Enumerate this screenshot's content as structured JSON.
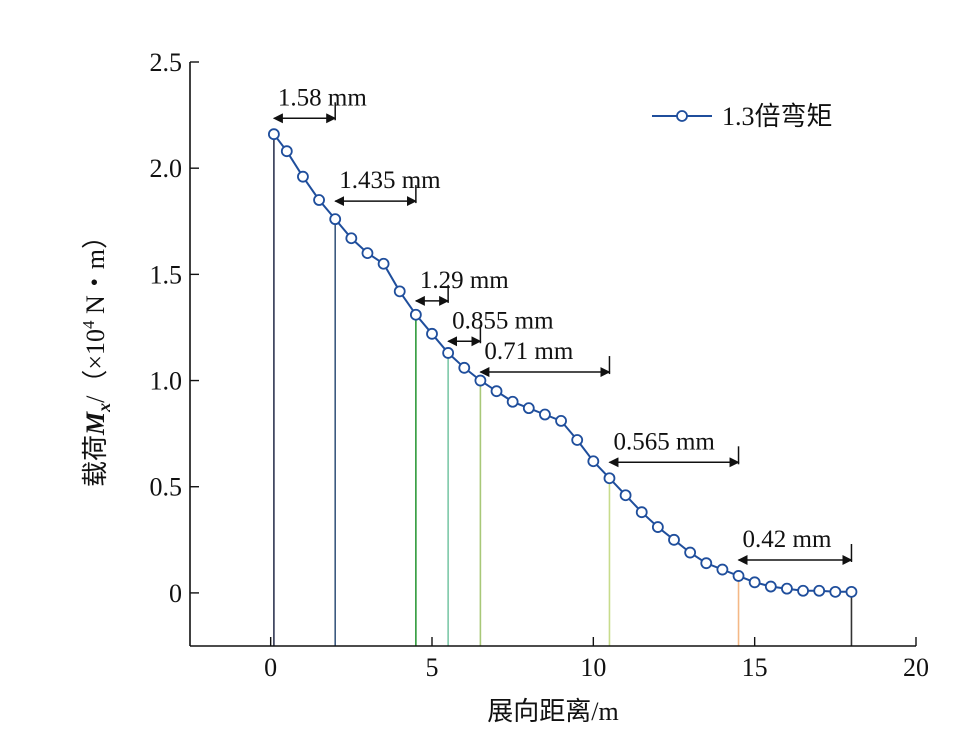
{
  "chart_data": {
    "type": "line",
    "xlabel": "展向距离/m",
    "ylabel_prefix": "载荷",
    "ylabel_symbol": "M",
    "ylabel_subscript": "x",
    "ylabel_suffix": "/（×10",
    "ylabel_exponent": "4",
    "ylabel_unit": " N・m）",
    "xlim": [
      -2.5,
      20
    ],
    "ylim": [
      -0.25,
      2.5
    ],
    "xticks": [
      0,
      5,
      10,
      15,
      20
    ],
    "xtick_labels": [
      "0",
      "5",
      "10",
      "15",
      "20"
    ],
    "yticks": [
      0,
      0.5,
      1.0,
      1.5,
      2.0,
      2.5
    ],
    "ytick_labels": [
      "0",
      "0.5",
      "1.0",
      "1.5",
      "2.0",
      "2.5"
    ],
    "grid": false,
    "legend_position": "top-right",
    "series": [
      {
        "name": "1.3倍弯矩",
        "color": "#1f4e9c",
        "marker": "open-circle",
        "x": [
          0.1,
          0.5,
          1.0,
          1.5,
          2.0,
          2.5,
          3.0,
          3.5,
          4.0,
          4.5,
          5.0,
          5.5,
          6.0,
          6.5,
          7.0,
          7.5,
          8.0,
          8.5,
          9.0,
          9.5,
          10.0,
          10.5,
          11.0,
          11.5,
          12.0,
          12.5,
          13.0,
          13.5,
          14.0,
          14.5,
          15.0,
          15.5,
          16.0,
          16.5,
          17.0,
          17.5,
          18.0
        ],
        "y": [
          2.16,
          2.08,
          1.96,
          1.85,
          1.76,
          1.67,
          1.6,
          1.55,
          1.42,
          1.31,
          1.22,
          1.13,
          1.06,
          1.0,
          0.95,
          0.9,
          0.87,
          0.84,
          0.81,
          0.72,
          0.62,
          0.54,
          0.46,
          0.38,
          0.31,
          0.25,
          0.19,
          0.14,
          0.11,
          0.08,
          0.05,
          0.03,
          0.02,
          0.01,
          0.01,
          0.005,
          0.005
        ]
      }
    ],
    "vertical_lines": [
      {
        "x": 0.1,
        "color": "#2f3552"
      },
      {
        "x": 2.0,
        "color": "#3d5a80"
      },
      {
        "x": 4.5,
        "color": "#2e9a3a"
      },
      {
        "x": 5.5,
        "color": "#7ec8a8"
      },
      {
        "x": 6.5,
        "color": "#a8c878"
      },
      {
        "x": 10.5,
        "color": "#c8dc8c"
      },
      {
        "x": 14.5,
        "color": "#f4b886"
      },
      {
        "x": 18.0,
        "color": "#333333"
      }
    ],
    "annotations": [
      {
        "label": "1.58 mm",
        "x1": 0.1,
        "x2": 2.0,
        "y": 2.235
      },
      {
        "label": "1.435 mm",
        "x1": 2.0,
        "x2": 4.5,
        "y": 1.845
      },
      {
        "label": "1.29 mm",
        "x1": 4.5,
        "x2": 5.5,
        "y": 1.375
      },
      {
        "label": "0.855 mm",
        "x1": 5.5,
        "x2": 6.5,
        "y": 1.185
      },
      {
        "label": "0.71 mm",
        "x1": 6.5,
        "x2": 10.5,
        "y": 1.04
      },
      {
        "label": "0.565 mm",
        "x1": 10.5,
        "x2": 14.5,
        "y": 0.615
      },
      {
        "label": "0.42 mm",
        "x1": 14.5,
        "x2": 18.0,
        "y": 0.155
      }
    ]
  }
}
